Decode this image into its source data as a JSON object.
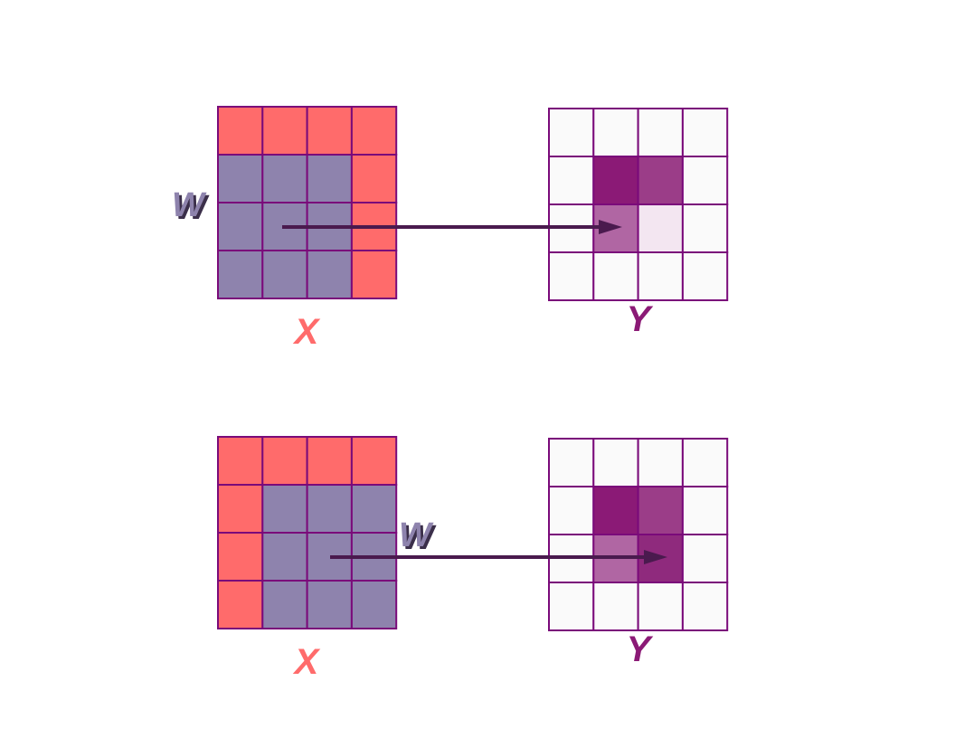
{
  "colors": {
    "input_cell": "#ff6b6b",
    "kernel_cell": "#8e83ad",
    "grid_line": "#7a0a7a",
    "output_empty": "#fafafa",
    "arrow": "#4a1a4e",
    "x_label": "#ff6b6b",
    "y_label": "#8b1a76",
    "w_label": "#8e83ad",
    "w_shadow": "#3b2f4a"
  },
  "panels": [
    {
      "input_label": "X",
      "output_label": "Y",
      "kernel_label": "W",
      "grid_size": 4,
      "kernel_position": {
        "row": 1,
        "col": 0,
        "size": 3
      },
      "output_filled": [
        {
          "row": 1,
          "col": 1,
          "color": "#8b1a76"
        },
        {
          "row": 1,
          "col": 2,
          "color": "#9b3d88"
        },
        {
          "row": 2,
          "col": 1,
          "color": "#b066a3"
        },
        {
          "row": 2,
          "col": 2,
          "color": "#f3e6f1"
        }
      ]
    },
    {
      "input_label": "X",
      "output_label": "Y",
      "kernel_label": "W",
      "grid_size": 4,
      "kernel_position": {
        "row": 1,
        "col": 1,
        "size": 3
      },
      "output_filled": [
        {
          "row": 1,
          "col": 1,
          "color": "#8b1a76"
        },
        {
          "row": 1,
          "col": 2,
          "color": "#9b3d88"
        },
        {
          "row": 2,
          "col": 1,
          "color": "#b066a3"
        },
        {
          "row": 2,
          "col": 2,
          "color": "#8f2a7d"
        }
      ]
    }
  ]
}
